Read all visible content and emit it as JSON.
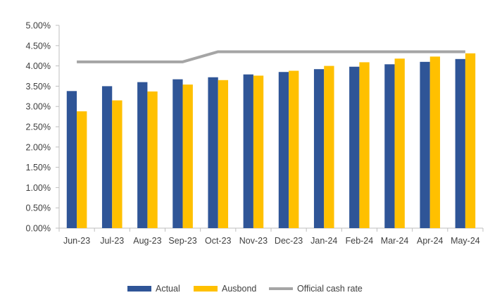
{
  "chart_data": {
    "type": "bar",
    "categories": [
      "Jun-23",
      "Jul-23",
      "Aug-23",
      "Sep-23",
      "Oct-23",
      "Nov-23",
      "Dec-23",
      "Jan-24",
      "Feb-24",
      "Mar-24",
      "Apr-24",
      "May-24"
    ],
    "series": [
      {
        "name": "Actual",
        "kind": "bar",
        "color": "#2F5597",
        "values": [
          3.38,
          3.5,
          3.6,
          3.67,
          3.72,
          3.79,
          3.85,
          3.92,
          3.98,
          4.04,
          4.1,
          4.17
        ]
      },
      {
        "name": "Ausbond",
        "kind": "bar",
        "color": "#FFC000",
        "values": [
          2.88,
          3.15,
          3.37,
          3.54,
          3.65,
          3.76,
          3.88,
          4.0,
          4.09,
          4.18,
          4.23,
          4.31
        ]
      },
      {
        "name": "Official cash rate",
        "kind": "line",
        "color": "#A5A5A5",
        "values": [
          4.1,
          4.1,
          4.1,
          4.1,
          4.35,
          4.35,
          4.35,
          4.35,
          4.35,
          4.35,
          4.35,
          4.35
        ]
      }
    ],
    "y_ticks": [
      "0.00%",
      "0.50%",
      "1.00%",
      "1.50%",
      "2.00%",
      "2.50%",
      "3.00%",
      "3.50%",
      "4.00%",
      "4.50%",
      "5.00%"
    ],
    "ylim": [
      0,
      5
    ],
    "title": "",
    "xlabel": "",
    "ylabel": "",
    "grid": false,
    "legend_position": "bottom"
  },
  "legend": {
    "actual_label": "Actual",
    "ausbond_label": "Ausbond",
    "ocr_label": "Official cash rate"
  }
}
